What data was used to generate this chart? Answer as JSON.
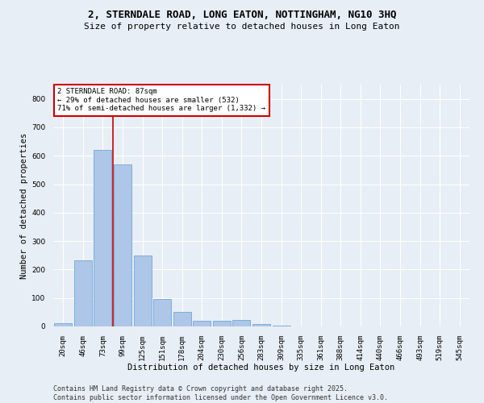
{
  "title_line1": "2, STERNDALE ROAD, LONG EATON, NOTTINGHAM, NG10 3HQ",
  "title_line2": "Size of property relative to detached houses in Long Eaton",
  "xlabel": "Distribution of detached houses by size in Long Eaton",
  "ylabel": "Number of detached properties",
  "categories": [
    "20sqm",
    "46sqm",
    "73sqm",
    "99sqm",
    "125sqm",
    "151sqm",
    "178sqm",
    "204sqm",
    "230sqm",
    "256sqm",
    "283sqm",
    "309sqm",
    "335sqm",
    "361sqm",
    "388sqm",
    "414sqm",
    "440sqm",
    "466sqm",
    "493sqm",
    "519sqm",
    "545sqm"
  ],
  "values": [
    10,
    233,
    621,
    570,
    250,
    97,
    50,
    21,
    20,
    22,
    8,
    4,
    0,
    0,
    0,
    0,
    0,
    0,
    0,
    0,
    0
  ],
  "bar_color": "#aec6e8",
  "bar_edge_color": "#5a9fd4",
  "vline_x": 2.5,
  "vline_color": "#cc0000",
  "annotation_text": "2 STERNDALE ROAD: 87sqm\n← 29% of detached houses are smaller (532)\n71% of semi-detached houses are larger (1,332) →",
  "annotation_box_color": "#ffffff",
  "annotation_box_edge_color": "#cc0000",
  "ylim": [
    0,
    850
  ],
  "yticks": [
    0,
    100,
    200,
    300,
    400,
    500,
    600,
    700,
    800
  ],
  "footer_line1": "Contains HM Land Registry data © Crown copyright and database right 2025.",
  "footer_line2": "Contains public sector information licensed under the Open Government Licence v3.0.",
  "bg_color": "#e8eef5",
  "plot_bg_color": "#e8eef5",
  "grid_color": "#ffffff",
  "title_fontsize": 9,
  "subtitle_fontsize": 8,
  "label_fontsize": 7.5,
  "tick_fontsize": 6.5,
  "footer_fontsize": 6
}
